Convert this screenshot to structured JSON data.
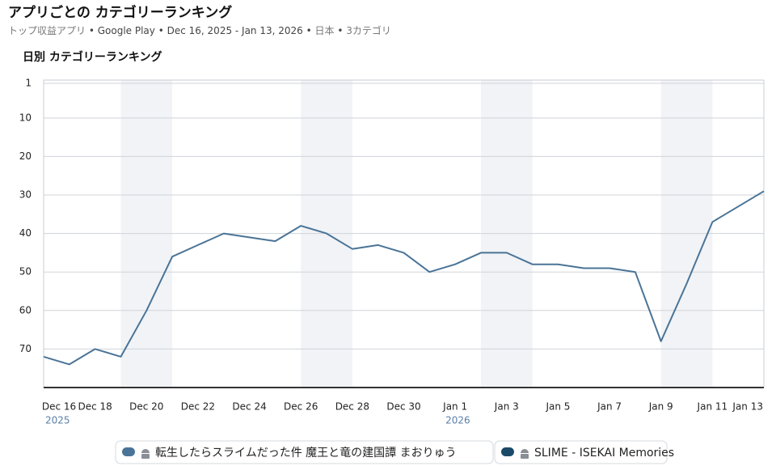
{
  "header": {
    "title": "アプリごとの カテゴリーランキング",
    "subtitle": [
      "トップ収益アプリ",
      "Google Play",
      "Dec 16, 2025 - Jan 13, 2026",
      "日本",
      "3カテゴリ"
    ]
  },
  "chart_data": {
    "type": "line",
    "title": "日別 カテゴリーランキング",
    "categories": [
      "Dec 16",
      null,
      "Dec 18",
      null,
      "Dec 20",
      null,
      "Dec 22",
      null,
      "Dec 24",
      null,
      "Dec 26",
      null,
      "Dec 28",
      null,
      "Dec 30",
      null,
      "Jan 1",
      null,
      "Jan 3",
      null,
      "Jan 5",
      null,
      "Jan 7",
      null,
      "Jan 9",
      null,
      "Jan 11",
      null,
      "Jan 13"
    ],
    "year_labels": [
      {
        "index": 0,
        "label": "2025"
      },
      {
        "index": 16,
        "label": "2026"
      }
    ],
    "highlight_ranges": [
      [
        3,
        5
      ],
      [
        10,
        12
      ],
      [
        17,
        19
      ],
      [
        24,
        26
      ]
    ],
    "series": [
      {
        "name": "転生したらスライムだった件 魔王と竜の建国譚 まおりゅう",
        "color": "#4a7497",
        "values": [
          72,
          74,
          70,
          72,
          60,
          46,
          43,
          40,
          41,
          42,
          38,
          40,
          44,
          43,
          45,
          50,
          48,
          45,
          45,
          48,
          48,
          49,
          49,
          50,
          68,
          53,
          37,
          33,
          29
        ]
      },
      {
        "name": "SLIME - ISEKAI Memories",
        "color": "#1b4a68",
        "values": [
          null,
          null,
          null,
          null,
          null,
          null,
          null,
          null,
          null,
          null,
          null,
          null,
          null,
          null,
          null,
          null,
          null,
          null,
          null,
          null,
          null,
          null,
          null,
          null,
          null,
          null,
          null,
          null,
          null
        ]
      }
    ],
    "ylim": [
      1,
      80
    ],
    "y_reversed": true,
    "yticks": [
      1,
      10,
      20,
      30,
      40,
      50,
      60,
      70
    ],
    "grid": true
  }
}
